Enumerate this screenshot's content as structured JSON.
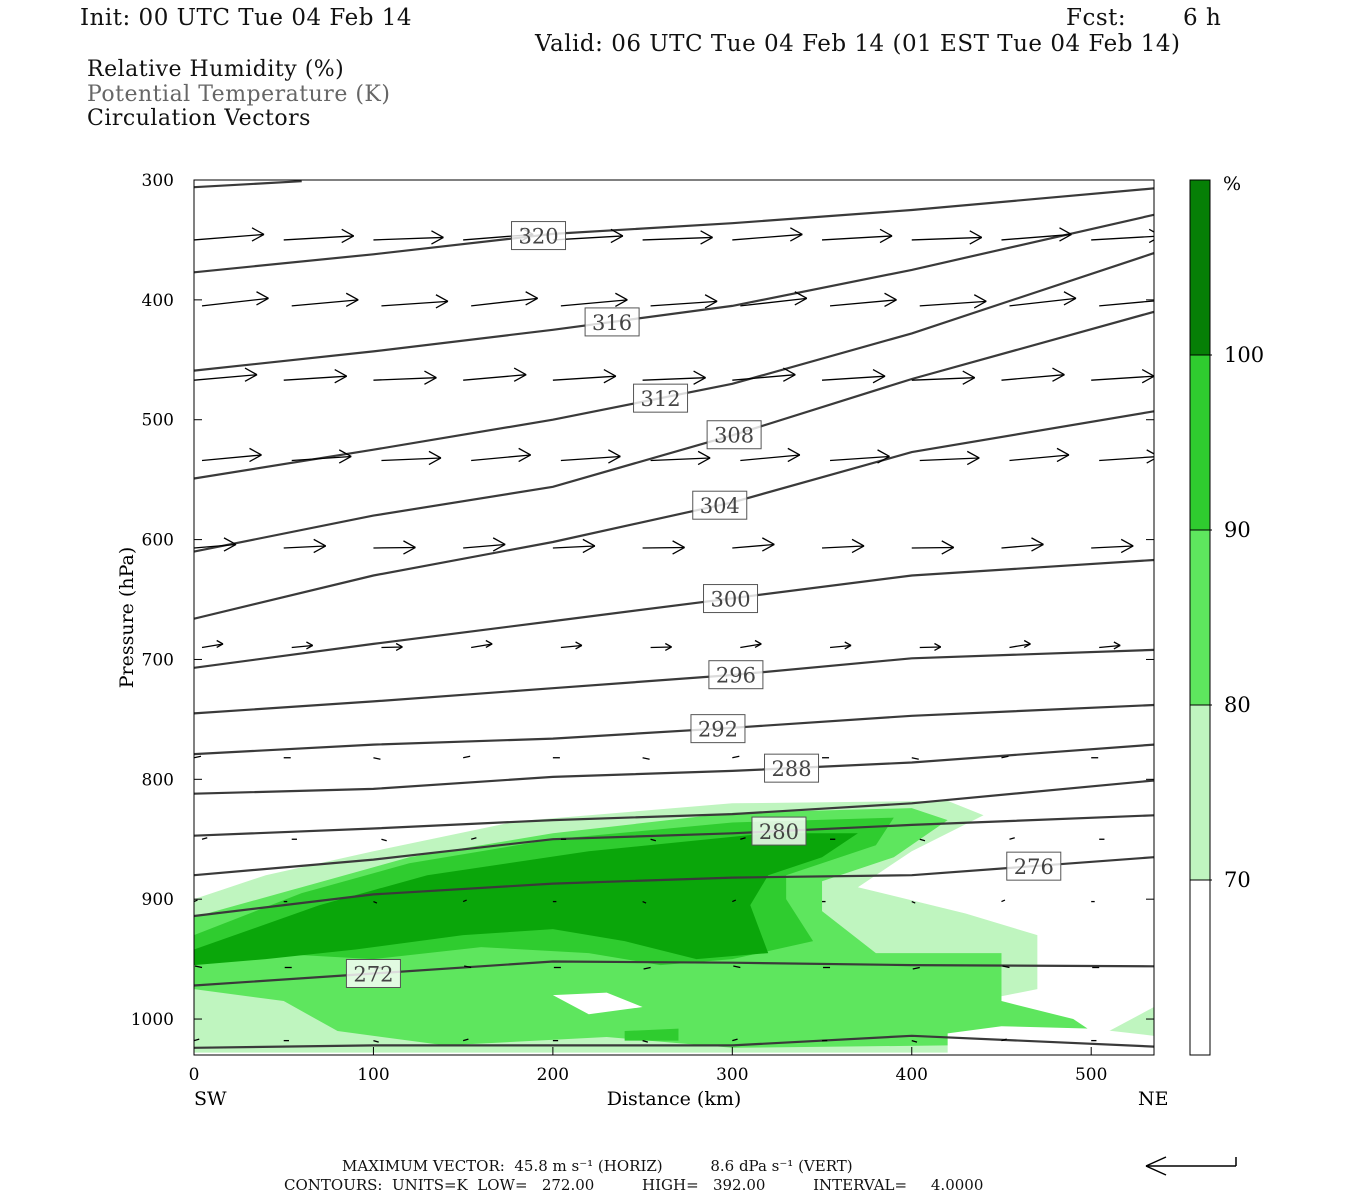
{
  "header": {
    "init": "Init: 00 UTC Tue 04 Feb 14",
    "fcst_label": "Fcst:",
    "fcst_value": "6 h",
    "valid": "Valid: 06 UTC Tue 04 Feb 14 (01 EST Tue 04 Feb 14)"
  },
  "fields": {
    "rh": "Relative Humidity (%)",
    "theta": "Potential Temperature (K)",
    "vectors": "Circulation Vectors"
  },
  "colors": {
    "theta_line": "#3a3a3a",
    "rh_70_80": "#bff5bf",
    "rh_80_90": "#5ee65e",
    "rh_90_100": "#2fcc2f",
    "rh_100": "#0aa60a",
    "rh_top": "#067f06"
  },
  "chart_data": {
    "type": "contour-cross-section",
    "xlabel": "Distance (km)",
    "ylabel": "Pressure (hPa)",
    "xlim": [
      0,
      535
    ],
    "ylim": [
      1030,
      300
    ],
    "x_ticks": [
      0,
      100,
      200,
      300,
      400,
      500
    ],
    "y_ticks": [
      300,
      400,
      500,
      600,
      700,
      800,
      900,
      1000
    ],
    "left_end_label": "SW",
    "right_end_label": "NE",
    "theta_contours": [
      {
        "value": 320,
        "label": "320",
        "label_x": 192,
        "points": [
          [
            0,
            377
          ],
          [
            100,
            362
          ],
          [
            200,
            345
          ],
          [
            300,
            336
          ],
          [
            400,
            325
          ],
          [
            535,
            307
          ]
        ]
      },
      {
        "value": 316,
        "label": "316",
        "label_x": 233,
        "points": [
          [
            0,
            459
          ],
          [
            100,
            443
          ],
          [
            200,
            425
          ],
          [
            300,
            405
          ],
          [
            400,
            375
          ],
          [
            535,
            329
          ]
        ]
      },
      {
        "value": 312,
        "label": "312",
        "label_x": 260,
        "points": [
          [
            0,
            549
          ],
          [
            100,
            525
          ],
          [
            200,
            500
          ],
          [
            300,
            470
          ],
          [
            400,
            428
          ],
          [
            535,
            361
          ]
        ]
      },
      {
        "value": 308,
        "label": "308",
        "label_x": 301,
        "points": [
          [
            0,
            610
          ],
          [
            100,
            580
          ],
          [
            200,
            556
          ],
          [
            300,
            513
          ],
          [
            400,
            466
          ],
          [
            535,
            410
          ]
        ]
      },
      {
        "value": 304,
        "label": "304",
        "label_x": 293,
        "points": [
          [
            0,
            666
          ],
          [
            100,
            630
          ],
          [
            200,
            602
          ],
          [
            300,
            569
          ],
          [
            400,
            527
          ],
          [
            535,
            493
          ]
        ]
      },
      {
        "value": 300,
        "label": "300",
        "label_x": 299,
        "points": [
          [
            0,
            707
          ],
          [
            100,
            687
          ],
          [
            200,
            668
          ],
          [
            300,
            649
          ],
          [
            400,
            630
          ],
          [
            535,
            617
          ]
        ]
      },
      {
        "value": 296,
        "label": "296",
        "label_x": 302,
        "points": [
          [
            0,
            745
          ],
          [
            100,
            735
          ],
          [
            200,
            724
          ],
          [
            300,
            713
          ],
          [
            400,
            699
          ],
          [
            535,
            692
          ]
        ]
      },
      {
        "value": 292,
        "label": "292",
        "label_x": 292,
        "points": [
          [
            0,
            779
          ],
          [
            100,
            771
          ],
          [
            200,
            766
          ],
          [
            300,
            757
          ],
          [
            400,
            747
          ],
          [
            535,
            738
          ]
        ]
      },
      {
        "value": 288,
        "label": "288",
        "label_x": 333,
        "points": [
          [
            0,
            812
          ],
          [
            100,
            808
          ],
          [
            200,
            798
          ],
          [
            300,
            793
          ],
          [
            400,
            786
          ],
          [
            535,
            771
          ]
        ]
      },
      {
        "value": 284,
        "label": "",
        "label_x": 0,
        "points": [
          [
            0,
            847
          ],
          [
            100,
            841
          ],
          [
            200,
            834
          ],
          [
            300,
            829
          ],
          [
            400,
            820
          ],
          [
            535,
            801
          ]
        ]
      },
      {
        "value": 280,
        "label": "280",
        "label_x": 326,
        "points": [
          [
            0,
            880
          ],
          [
            100,
            867
          ],
          [
            200,
            850
          ],
          [
            300,
            845
          ],
          [
            400,
            838
          ],
          [
            535,
            830
          ]
        ]
      },
      {
        "value": 276,
        "label": "276",
        "label_x": 468,
        "points": [
          [
            0,
            914
          ],
          [
            100,
            896
          ],
          [
            200,
            887
          ],
          [
            300,
            882
          ],
          [
            400,
            880
          ],
          [
            535,
            865
          ]
        ]
      },
      {
        "value": 272,
        "label": "272",
        "label_x": 100,
        "points": [
          [
            0,
            972
          ],
          [
            100,
            962
          ],
          [
            200,
            952
          ],
          [
            300,
            953
          ],
          [
            400,
            955
          ],
          [
            535,
            956
          ]
        ]
      },
      {
        "value": 268,
        "label": "",
        "label_x": 0,
        "points": [
          [
            0,
            1024
          ],
          [
            100,
            1022
          ],
          [
            200,
            1022
          ],
          [
            300,
            1022
          ],
          [
            400,
            1014
          ],
          [
            535,
            1023
          ]
        ]
      },
      {
        "value": 320.5,
        "label": "",
        "label_x": 0,
        "points": [
          [
            0,
            306
          ],
          [
            60,
            301
          ]
        ]
      }
    ],
    "rh_levels": [
      70,
      80,
      90,
      100
    ],
    "rh_colorbar_label": "%",
    "vector_rows": [
      {
        "p": 350,
        "u": 40,
        "w": -2
      },
      {
        "p": 405,
        "u": 38,
        "w": -3
      },
      {
        "p": 467,
        "u": 36,
        "w": -2
      },
      {
        "p": 534,
        "u": 34,
        "w": -2
      },
      {
        "p": 607,
        "u": 24,
        "w": -1
      },
      {
        "p": 690,
        "u": 12,
        "w": -1
      },
      {
        "p": 782,
        "u": 4,
        "w": 0
      },
      {
        "p": 850,
        "u": 3,
        "w": 0
      },
      {
        "p": 902,
        "u": 2,
        "w": 0
      },
      {
        "p": 957,
        "u": -4,
        "w": 0
      },
      {
        "p": 1018,
        "u": 3,
        "w": 0
      }
    ],
    "footer": {
      "max_vector": "MAXIMUM VECTOR:  45.8 m s⁻¹ (HORIZ)          8.6 dPa s⁻¹ (VERT)",
      "contours": "CONTOURS:  UNITS=K  LOW=   272.00          HIGH=   392.00          INTERVAL=     4.0000"
    }
  }
}
